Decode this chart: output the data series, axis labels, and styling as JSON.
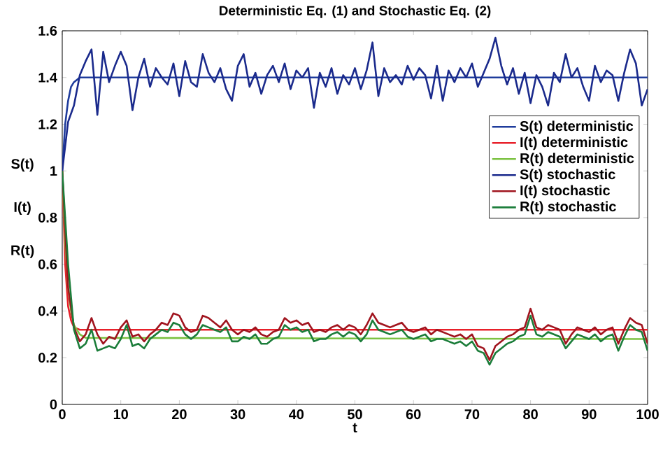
{
  "chart_data": {
    "type": "line",
    "title": "Deterministic Eq. (1) and Stochastic Eq. (2)",
    "xlabel": "t",
    "ylabel": "S(t) I(t) R(t)",
    "xlim": [
      0,
      100
    ],
    "ylim": [
      0,
      1.6
    ],
    "xticks": [
      0,
      10,
      20,
      30,
      40,
      50,
      60,
      70,
      80,
      90,
      100
    ],
    "yticks": [
      0,
      0.2,
      0.4,
      0.6,
      0.8,
      1,
      1.2,
      1.4,
      1.6
    ],
    "grid": false,
    "legend": "right",
    "marker": "none",
    "line_style": "solid",
    "x": [
      0,
      1,
      2,
      3,
      4,
      5,
      6,
      7,
      8,
      9,
      10,
      11,
      12,
      13,
      14,
      15,
      16,
      17,
      18,
      19,
      20,
      21,
      22,
      23,
      24,
      25,
      26,
      27,
      28,
      29,
      30,
      31,
      32,
      33,
      34,
      35,
      36,
      37,
      38,
      39,
      40,
      41,
      42,
      43,
      44,
      45,
      46,
      47,
      48,
      49,
      50,
      51,
      52,
      53,
      54,
      55,
      56,
      57,
      58,
      59,
      60,
      61,
      62,
      63,
      64,
      65,
      66,
      67,
      68,
      69,
      70,
      71,
      72,
      73,
      74,
      75,
      76,
      77,
      78,
      79,
      80,
      81,
      82,
      83,
      84,
      85,
      86,
      87,
      88,
      89,
      90,
      91,
      92,
      93,
      94,
      95,
      96,
      97,
      98,
      99,
      100
    ],
    "series": [
      {
        "name": "S(t) deterministic",
        "color": "#1f3c9c",
        "x": [
          0,
          0.5,
          1,
          1.5,
          2,
          3,
          4,
          100
        ],
        "values": [
          1,
          1.2,
          1.3,
          1.36,
          1.38,
          1.4,
          1.4,
          1.4
        ]
      },
      {
        "name": "I(t) deterministic",
        "color": "#e8202a",
        "x": [
          0,
          0.5,
          1,
          1.5,
          2,
          3,
          4,
          100
        ],
        "values": [
          1,
          0.6,
          0.42,
          0.36,
          0.33,
          0.32,
          0.32,
          0.32
        ]
      },
      {
        "name": "R(t) deterministic",
        "color": "#7cc242",
        "x": [
          0,
          0.5,
          1,
          1.5,
          2,
          3,
          4,
          100
        ],
        "values": [
          1,
          0.7,
          0.5,
          0.4,
          0.34,
          0.3,
          0.285,
          0.28
        ]
      },
      {
        "name": "S(t) stochastic",
        "color": "#1a2a8c",
        "values": [
          1.0,
          1.21,
          1.28,
          1.41,
          1.47,
          1.52,
          1.24,
          1.51,
          1.38,
          1.45,
          1.51,
          1.45,
          1.26,
          1.4,
          1.48,
          1.36,
          1.44,
          1.4,
          1.37,
          1.46,
          1.32,
          1.47,
          1.38,
          1.36,
          1.5,
          1.42,
          1.38,
          1.44,
          1.35,
          1.3,
          1.45,
          1.5,
          1.36,
          1.42,
          1.33,
          1.41,
          1.45,
          1.38,
          1.46,
          1.35,
          1.43,
          1.4,
          1.44,
          1.27,
          1.42,
          1.36,
          1.44,
          1.33,
          1.41,
          1.37,
          1.44,
          1.35,
          1.43,
          1.55,
          1.32,
          1.44,
          1.38,
          1.41,
          1.37,
          1.45,
          1.39,
          1.44,
          1.41,
          1.31,
          1.45,
          1.3,
          1.43,
          1.38,
          1.44,
          1.4,
          1.46,
          1.36,
          1.42,
          1.48,
          1.57,
          1.45,
          1.37,
          1.44,
          1.33,
          1.42,
          1.29,
          1.41,
          1.36,
          1.28,
          1.42,
          1.38,
          1.5,
          1.4,
          1.44,
          1.36,
          1.3,
          1.45,
          1.38,
          1.43,
          1.41,
          1.3,
          1.42,
          1.52,
          1.46,
          1.28,
          1.35
        ]
      },
      {
        "name": "I(t) stochastic",
        "color": "#a0141e",
        "values": [
          1.0,
          0.5,
          0.33,
          0.27,
          0.3,
          0.37,
          0.3,
          0.26,
          0.29,
          0.28,
          0.33,
          0.36,
          0.29,
          0.3,
          0.27,
          0.3,
          0.32,
          0.35,
          0.34,
          0.39,
          0.38,
          0.33,
          0.31,
          0.32,
          0.38,
          0.37,
          0.35,
          0.33,
          0.36,
          0.32,
          0.3,
          0.32,
          0.31,
          0.33,
          0.3,
          0.29,
          0.31,
          0.32,
          0.37,
          0.35,
          0.36,
          0.34,
          0.35,
          0.31,
          0.32,
          0.31,
          0.33,
          0.34,
          0.32,
          0.34,
          0.33,
          0.3,
          0.34,
          0.39,
          0.35,
          0.34,
          0.33,
          0.34,
          0.35,
          0.32,
          0.31,
          0.32,
          0.33,
          0.3,
          0.32,
          0.31,
          0.3,
          0.29,
          0.3,
          0.28,
          0.3,
          0.25,
          0.24,
          0.19,
          0.25,
          0.27,
          0.29,
          0.3,
          0.32,
          0.33,
          0.41,
          0.33,
          0.32,
          0.34,
          0.33,
          0.32,
          0.26,
          0.3,
          0.33,
          0.32,
          0.31,
          0.33,
          0.3,
          0.32,
          0.33,
          0.26,
          0.32,
          0.37,
          0.35,
          0.34,
          0.26
        ]
      },
      {
        "name": "R(t) stochastic",
        "color": "#1b7d3a",
        "values": [
          1.0,
          0.6,
          0.32,
          0.24,
          0.26,
          0.32,
          0.23,
          0.24,
          0.25,
          0.24,
          0.28,
          0.34,
          0.25,
          0.26,
          0.24,
          0.28,
          0.3,
          0.32,
          0.31,
          0.35,
          0.34,
          0.3,
          0.28,
          0.3,
          0.34,
          0.33,
          0.32,
          0.31,
          0.33,
          0.27,
          0.27,
          0.29,
          0.28,
          0.3,
          0.26,
          0.26,
          0.28,
          0.29,
          0.34,
          0.32,
          0.33,
          0.31,
          0.32,
          0.27,
          0.28,
          0.28,
          0.3,
          0.31,
          0.29,
          0.31,
          0.3,
          0.27,
          0.3,
          0.36,
          0.32,
          0.31,
          0.3,
          0.31,
          0.32,
          0.29,
          0.28,
          0.29,
          0.3,
          0.27,
          0.28,
          0.28,
          0.27,
          0.26,
          0.27,
          0.25,
          0.27,
          0.23,
          0.22,
          0.17,
          0.22,
          0.24,
          0.26,
          0.27,
          0.29,
          0.3,
          0.38,
          0.3,
          0.29,
          0.31,
          0.3,
          0.29,
          0.24,
          0.27,
          0.3,
          0.29,
          0.28,
          0.3,
          0.27,
          0.29,
          0.3,
          0.23,
          0.29,
          0.34,
          0.32,
          0.31,
          0.23
        ]
      }
    ]
  }
}
